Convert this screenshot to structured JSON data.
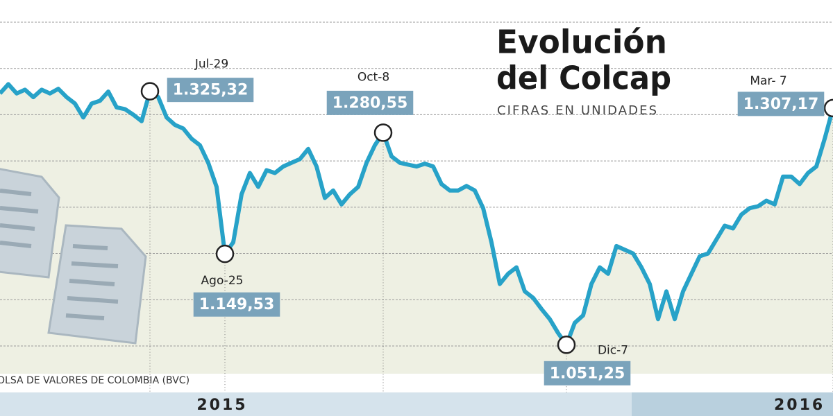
{
  "chart_data": {
    "type": "line",
    "title_lines": [
      "Evolución",
      "del Colcap"
    ],
    "subtitle": "CIFRAS EN UNIDADES",
    "source": "OLSA DE VALORES DE COLOMBIA (BVC)",
    "periods": [
      "2015",
      "2016"
    ],
    "categories": [
      null,
      null,
      null,
      null,
      null,
      null,
      null,
      null,
      null,
      null,
      null,
      null,
      null,
      null,
      null,
      null,
      null,
      null,
      "Jul-29",
      null,
      null,
      null,
      null,
      null,
      null,
      null,
      null,
      "Ago-25",
      null,
      null,
      null,
      null,
      null,
      null,
      null,
      null,
      null,
      null,
      null,
      null,
      null,
      null,
      null,
      null,
      null,
      null,
      "Oct-8",
      null,
      null,
      null,
      null,
      null,
      null,
      null,
      null,
      null,
      null,
      null,
      null,
      null,
      null,
      null,
      null,
      null,
      null,
      null,
      null,
      null,
      "Dic-7",
      null,
      null,
      null,
      null,
      null,
      null,
      null,
      null,
      null,
      null,
      null,
      null,
      null,
      null,
      null,
      null,
      null,
      null,
      null,
      null,
      null,
      null,
      null,
      null,
      null,
      null,
      null,
      null,
      null,
      null,
      null,
      "Mar- 7"
    ],
    "series": [
      {
        "name": "Colcap",
        "color": "#27a2c8",
        "values": [
          1323,
          1333,
          1323,
          1327,
          1319,
          1327,
          1323,
          1328,
          1319,
          1312,
          1297,
          1312,
          1315,
          1325,
          1308,
          1306,
          1300,
          1293,
          1325.32,
          1319,
          1297,
          1289,
          1285,
          1274,
          1267,
          1248,
          1222,
          1149.53,
          1162,
          1214,
          1237,
          1222,
          1240,
          1237,
          1244,
          1248,
          1252,
          1263,
          1244,
          1210,
          1218,
          1203,
          1214,
          1222,
          1248,
          1267,
          1280.55,
          1255,
          1248,
          1246,
          1244,
          1247,
          1244,
          1225,
          1218,
          1218,
          1223,
          1218,
          1199,
          1162,
          1117,
          1128,
          1135,
          1109,
          1102,
          1090,
          1079,
          1064,
          1051.25,
          1075,
          1083,
          1117,
          1135,
          1128,
          1158,
          1154,
          1150,
          1135,
          1117,
          1079,
          1109,
          1079,
          1109,
          1128,
          1147,
          1150,
          1165,
          1180,
          1177,
          1192,
          1199,
          1201,
          1207,
          1203,
          1233,
          1233,
          1225,
          1237,
          1244,
          1274,
          1307.17
        ],
        "value_labels": [
          null,
          null,
          null,
          null,
          null,
          null,
          null,
          null,
          null,
          null,
          null,
          null,
          null,
          null,
          null,
          null,
          null,
          null,
          "1.325,32",
          null,
          null,
          null,
          null,
          null,
          null,
          null,
          null,
          "1.149,53",
          null,
          null,
          null,
          null,
          null,
          null,
          null,
          null,
          null,
          null,
          null,
          null,
          null,
          null,
          null,
          null,
          null,
          null,
          "1.280,55",
          null,
          null,
          null,
          null,
          null,
          null,
          null,
          null,
          null,
          null,
          null,
          null,
          null,
          null,
          null,
          null,
          null,
          null,
          null,
          null,
          null,
          "1.051,25",
          null,
          null,
          null,
          null,
          null,
          null,
          null,
          null,
          null,
          null,
          null,
          null,
          null,
          null,
          null,
          null,
          null,
          null,
          null,
          null,
          null,
          null,
          null,
          null,
          null,
          null,
          null,
          null,
          null,
          null,
          null,
          "1.307,17"
        ]
      }
    ],
    "ylim": [
      1020,
      1424
    ],
    "yticks": [
      1050,
      1100,
      1150,
      1200,
      1250,
      1300,
      1350,
      1400
    ],
    "grid": true
  }
}
